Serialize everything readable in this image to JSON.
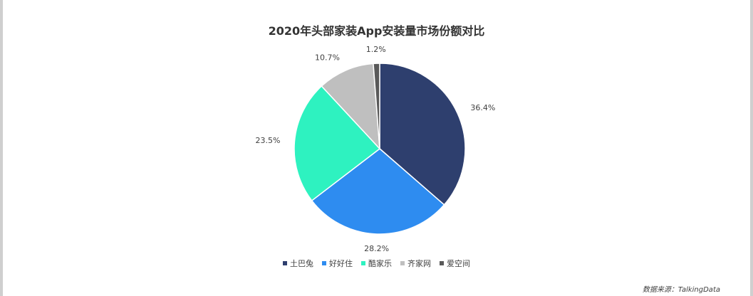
{
  "chart_data": {
    "type": "pie",
    "title": "2020年头部家装App安装量市场份额对比",
    "categories": [
      "土巴兔",
      "好好住",
      "酷家乐",
      "齐家网",
      "爱空间"
    ],
    "values": [
      36.4,
      28.2,
      23.5,
      10.7,
      1.2
    ],
    "data_labels": [
      "36.4%",
      "28.2%",
      "23.5%",
      "10.7%",
      "1.2%"
    ],
    "colors": [
      "#2E3F6E",
      "#2E8CF0",
      "#2EF2C0",
      "#BFBFBF",
      "#595959"
    ],
    "legend_position": "bottom",
    "start": "top, clockwise"
  },
  "source": "数据来源：TalkingData"
}
